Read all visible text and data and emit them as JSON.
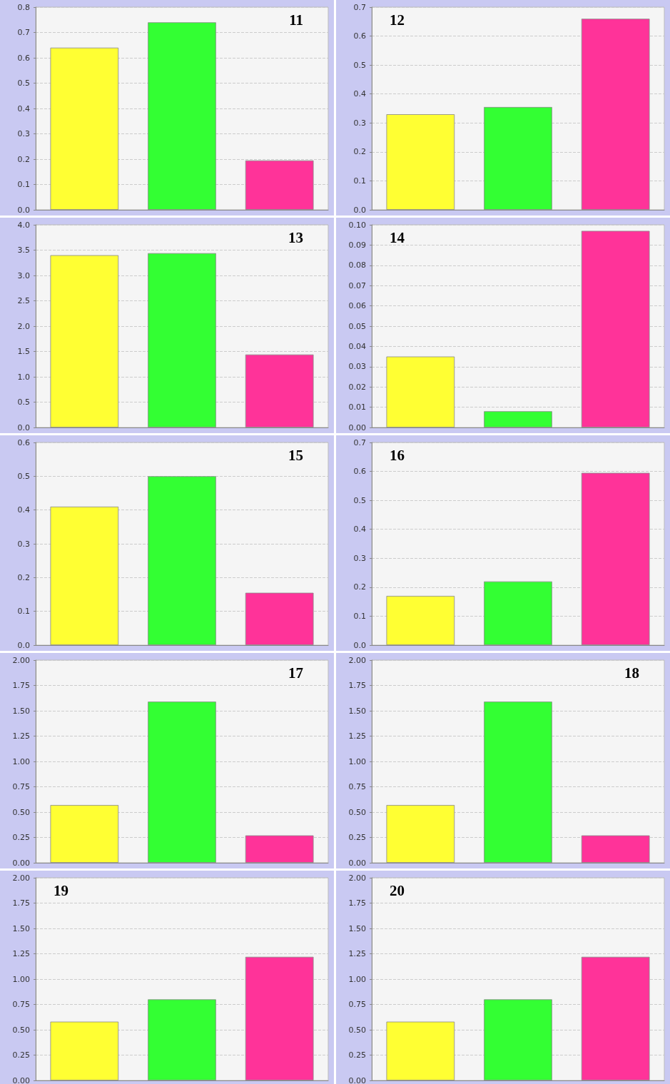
{
  "chart_data": [
    {
      "type": "bar",
      "title": "11",
      "categories": [
        null,
        null,
        null
      ],
      "values": [
        0.64,
        0.74,
        0.195
      ],
      "colors": [
        "#ffff33",
        "#33ff33",
        "#ff3399"
      ],
      "ylim": [
        0,
        0.8
      ],
      "yticks": [
        {
          "value": 0,
          "label": "0.0"
        },
        0.1,
        0.2,
        0.3,
        0.4,
        0.5,
        0.6,
        0.7,
        0.8
      ],
      "grid": "y"
    },
    {
      "type": "bar",
      "title": "12",
      "categories": [
        null,
        null,
        null
      ],
      "values": [
        0.33,
        0.355,
        0.66
      ],
      "colors": [
        "#ffff33",
        "#33ff33",
        "#ff3399"
      ],
      "ylim": [
        0,
        0.7
      ],
      "yticks": [
        {
          "value": 0,
          "label": "0.0"
        },
        0.1,
        0.2,
        0.3,
        0.4,
        0.5,
        0.6,
        0.7
      ],
      "grid": "y"
    },
    {
      "type": "bar",
      "title": "13",
      "categories": [
        null,
        null,
        null
      ],
      "values": [
        3.4,
        3.44,
        1.44
      ],
      "colors": [
        "#ffff33",
        "#33ff33",
        "#ff3399"
      ],
      "ylim": [
        0,
        4
      ],
      "yticks": [
        {
          "value": 0,
          "label": "0.0"
        },
        0.5,
        {
          "value": 1,
          "label": "1.0"
        },
        1.5,
        {
          "value": 2,
          "label": "2.0"
        },
        2.5,
        {
          "value": 3,
          "label": "3.0"
        },
        3.5,
        {
          "value": 4,
          "label": "4.0"
        }
      ],
      "grid": "y"
    },
    {
      "type": "bar",
      "title": "14",
      "categories": [
        null,
        null,
        null
      ],
      "values": [
        0.035,
        0.008,
        0.097
      ],
      "colors": [
        "#ffff33",
        "#33ff33",
        "#ff3399"
      ],
      "ylim": [
        0,
        0.1
      ],
      "yticks": [
        {
          "value": 0,
          "label": "0.00"
        },
        0.01,
        0.02,
        0.03,
        0.04,
        0.05,
        0.06,
        0.07,
        0.08,
        0.09,
        {
          "value": 0.1,
          "label": "0.10"
        }
      ],
      "grid": "y"
    },
    {
      "type": "bar",
      "title": "15",
      "categories": [
        null,
        null,
        null
      ],
      "values": [
        0.41,
        0.5,
        0.155
      ],
      "colors": [
        "#ffff33",
        "#33ff33",
        "#ff3399"
      ],
      "ylim": [
        0,
        0.6
      ],
      "yticks": [
        {
          "value": 0,
          "label": "0.0"
        },
        0.1,
        0.2,
        0.3,
        0.4,
        0.5,
        0.6
      ],
      "grid": "y"
    },
    {
      "type": "bar",
      "title": "16",
      "categories": [
        null,
        null,
        null
      ],
      "values": [
        0.17,
        0.22,
        0.595
      ],
      "colors": [
        "#ffff33",
        "#33ff33",
        "#ff3399"
      ],
      "ylim": [
        0,
        0.7
      ],
      "yticks": [
        {
          "value": 0,
          "label": "0.0"
        },
        0.1,
        0.2,
        0.3,
        0.4,
        0.5,
        0.6,
        0.7
      ],
      "grid": "y"
    },
    {
      "type": "bar",
      "title": "17",
      "categories": [
        null,
        null,
        null
      ],
      "values": [
        0.57,
        1.59,
        0.27
      ],
      "colors": [
        "#ffff33",
        "#33ff33",
        "#ff3399"
      ],
      "ylim": [
        0,
        2
      ],
      "yticks": [
        {
          "value": 0,
          "label": "0.00"
        },
        0.25,
        {
          "value": 0.5,
          "label": "0.50"
        },
        0.75,
        {
          "value": 1,
          "label": "1.00"
        },
        1.25,
        {
          "value": 1.5,
          "label": "1.50"
        },
        1.75,
        {
          "value": 2,
          "label": "2.00"
        }
      ],
      "grid": "y"
    },
    {
      "type": "bar",
      "title": "18",
      "categories": [
        null,
        null,
        null
      ],
      "values": [
        0.57,
        1.59,
        0.27
      ],
      "colors": [
        "#ffff33",
        "#33ff33",
        "#ff3399"
      ],
      "ylim": [
        0,
        2
      ],
      "yticks": [
        {
          "value": 0,
          "label": "0.00"
        },
        0.25,
        {
          "value": 0.5,
          "label": "0.50"
        },
        0.75,
        {
          "value": 1,
          "label": "1.00"
        },
        1.25,
        {
          "value": 1.5,
          "label": "1.50"
        },
        1.75,
        {
          "value": 2,
          "label": "2.00"
        }
      ],
      "grid": "y"
    },
    {
      "type": "bar",
      "title": "19",
      "categories": [
        null,
        null,
        null
      ],
      "values": [
        0.58,
        0.8,
        1.22
      ],
      "colors": [
        "#ffff33",
        "#33ff33",
        "#ff3399"
      ],
      "ylim": [
        0,
        2
      ],
      "yticks": [
        {
          "value": 0,
          "label": "0.00"
        },
        0.25,
        {
          "value": 0.5,
          "label": "0.50"
        },
        0.75,
        {
          "value": 1,
          "label": "1.00"
        },
        1.25,
        {
          "value": 1.5,
          "label": "1.50"
        },
        1.75,
        {
          "value": 2,
          "label": "2.00"
        }
      ],
      "grid": "y"
    },
    {
      "type": "bar",
      "title": "20",
      "categories": [
        null,
        null,
        null
      ],
      "values": [
        0.58,
        0.8,
        1.22
      ],
      "colors": [
        "#ffff33",
        "#33ff33",
        "#ff3399"
      ],
      "ylim": [
        0,
        2
      ],
      "yticks": [
        {
          "value": 0,
          "label": "0.00"
        },
        0.25,
        {
          "value": 0.5,
          "label": "0.50"
        },
        0.75,
        {
          "value": 1,
          "label": "1.00"
        },
        1.25,
        {
          "value": 1.5,
          "label": "1.50"
        },
        1.75,
        {
          "value": 2,
          "label": "2.00"
        }
      ],
      "grid": "y"
    }
  ]
}
